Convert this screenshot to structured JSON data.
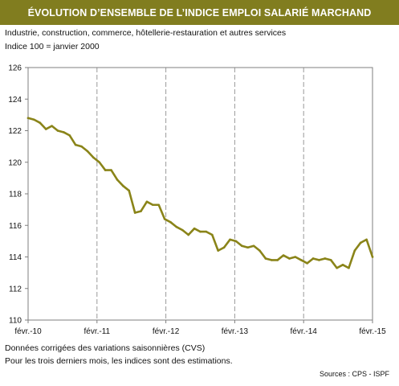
{
  "header": {
    "title": "ÉVOLUTION D’ENSEMBLE DE L’INDICE EMPLOI SALARIÉ MARCHAND",
    "subtitle_1": "Industrie, construction, commerce, hôtellerie-restauration et autres services",
    "subtitle_2": "Indice 100 = janvier 2000"
  },
  "footer": {
    "note_1": "Données corrigées des variations saisonnières (CVS)",
    "note_2": "Pour les trois derniers mois, les indices sont des estimations.",
    "source": "Sources : CPS - ISPF"
  },
  "colors": {
    "title_bar": "#817d1f",
    "line": "#8a8419",
    "grid": "#9a9a9a"
  },
  "chart_data": {
    "type": "line",
    "xlabel": "",
    "ylabel": "",
    "ylim": [
      110,
      126
    ],
    "yticks": [
      110,
      112,
      114,
      116,
      118,
      120,
      122,
      124,
      126
    ],
    "x_tick_labels": [
      "févr.-10",
      "févr.-11",
      "févr.-12",
      "févr.-13",
      "févr.-14",
      "févr.-15"
    ],
    "grid": "vertical dashed at x ticks",
    "series": [
      {
        "values": [
          122.8,
          122.7,
          122.5,
          122.1,
          122.3,
          122.0,
          121.9,
          121.7,
          121.1,
          121.0,
          120.7,
          120.3,
          120.0,
          119.5,
          119.5,
          118.9,
          118.5,
          118.2,
          116.8,
          116.9,
          117.5,
          117.3,
          117.3,
          116.4,
          116.2,
          115.9,
          115.7,
          115.4,
          115.8,
          115.6,
          115.6,
          115.4,
          114.4,
          114.6,
          115.1,
          115.0,
          114.7,
          114.6,
          114.7,
          114.4,
          113.9,
          113.8,
          113.8,
          114.1,
          113.9,
          114.0,
          113.8,
          113.6,
          113.9,
          113.8,
          113.9,
          113.8,
          113.3,
          113.5,
          113.3,
          114.4,
          114.9,
          115.1,
          114.0
        ]
      }
    ]
  }
}
